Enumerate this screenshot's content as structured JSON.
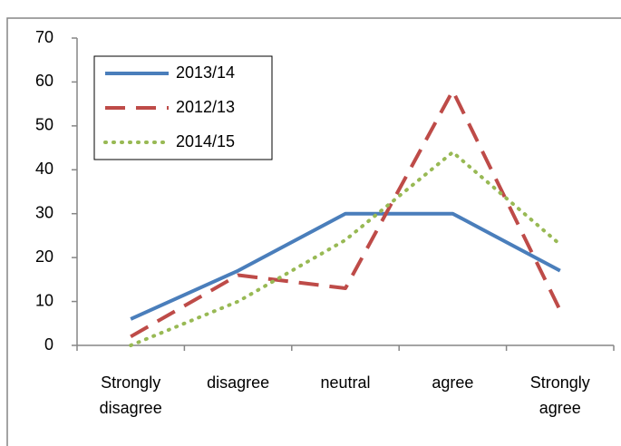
{
  "chart_data": {
    "type": "line",
    "categories": [
      "Strongly disagree",
      "disagree",
      "neutral",
      "agree",
      "Strongly agree"
    ],
    "series": [
      {
        "name": "2013/14",
        "color": "#4a7ebb",
        "style": "solid",
        "values": [
          6,
          17,
          30,
          30,
          17
        ]
      },
      {
        "name": "2012/13",
        "color": "#be4b48",
        "style": "dashed",
        "values": [
          2,
          16,
          13,
          58,
          8
        ]
      },
      {
        "name": "2014/15",
        "color": "#98b954",
        "style": "dotted",
        "values": [
          0,
          10,
          24,
          44,
          23
        ]
      }
    ],
    "ylim": [
      0,
      70
    ],
    "yticks": [
      0,
      10,
      20,
      30,
      40,
      50,
      60,
      70
    ],
    "grid": false,
    "legend": "upper left"
  }
}
